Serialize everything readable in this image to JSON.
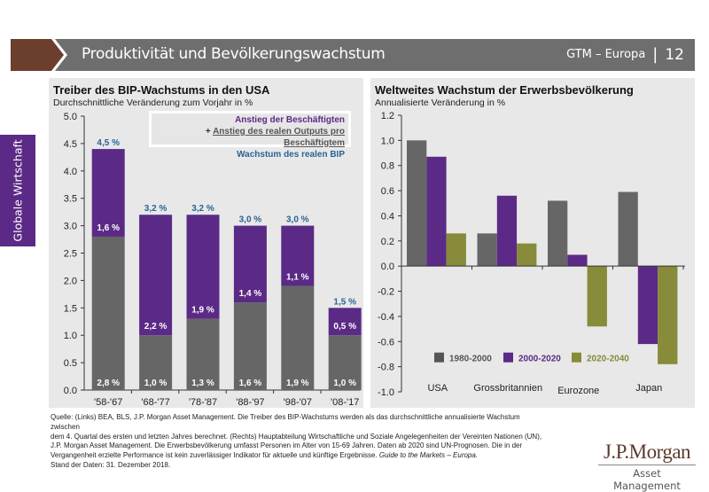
{
  "header": {
    "title": "Produktivität und Bevölkerungswachstum",
    "section": "GTM – Europa",
    "separator": "|",
    "page": "12"
  },
  "side_tab": {
    "label": "Globale Wirtschaft"
  },
  "colors": {
    "gray": "#666666",
    "purple": "#5b2a86",
    "olive": "#878b3a",
    "blue_label": "#2a6496",
    "brown": "#6b3e2e"
  },
  "chart_data": [
    {
      "type": "bar",
      "stacked": true,
      "title": "Treiber des BIP-Wachstums in den USA",
      "subtitle": "Durchschnittliche Veränderung zum Vorjahr in %",
      "categories": [
        "'58-'67",
        "'68-'77",
        "'78-'87",
        "'88-'97",
        "'98-'07",
        "'08-'17"
      ],
      "series": [
        {
          "name": "Anstieg der Beschäftigten",
          "values": [
            2.8,
            1.0,
            1.3,
            1.6,
            1.9,
            1.0
          ],
          "labels": [
            "2,8 %",
            "1,0 %",
            "1,3 %",
            "1,6 %",
            "1,9 %",
            "1,0 %"
          ]
        },
        {
          "name": "Anstieg des realen Outputs pro Beschäftigtem",
          "values": [
            1.6,
            2.2,
            1.9,
            1.4,
            1.1,
            0.5
          ],
          "labels": [
            "1,6 %",
            "2,2 %",
            "1,9 %",
            "1,4 %",
            "1,1 %",
            "0,5 %"
          ]
        }
      ],
      "totals": {
        "name": "Wachstum des realen BIP",
        "values": [
          4.5,
          3.2,
          3.2,
          3.0,
          3.0,
          1.5
        ],
        "labels": [
          "4,5 %",
          "3,2 %",
          "3,2 %",
          "3,0 %",
          "3,0 %",
          "1,5 %"
        ]
      },
      "legend": {
        "line1": "Anstieg der Beschäftigten",
        "plus": "+",
        "line2": "Anstieg des realen Outputs pro Beschäftigtem",
        "line3": "Wachstum des realen BIP",
        "position": "top-right"
      },
      "ylim": [
        0,
        5.0
      ],
      "yticks": [
        "0.0",
        "0.5",
        "1.0",
        "1.5",
        "2.0",
        "2.5",
        "3.0",
        "3.5",
        "4.0",
        "4.5",
        "5.0"
      ],
      "xlabel": "",
      "ylabel": "",
      "grid": false
    },
    {
      "type": "bar",
      "title": "Weltweites Wachstum der Erwerbsbevölkerung",
      "subtitle": "Annualisierte Veränderung in %",
      "categories": [
        "USA",
        "Grossbritannien",
        "Eurozone",
        "Japan"
      ],
      "series": [
        {
          "name": "1980-2000",
          "values": [
            1.0,
            0.26,
            0.52,
            0.59
          ]
        },
        {
          "name": "2000-2020",
          "values": [
            0.87,
            0.56,
            0.09,
            -0.62
          ]
        },
        {
          "name": "2020-2040",
          "values": [
            0.26,
            0.18,
            -0.48,
            -0.78
          ]
        }
      ],
      "legend_position": "bottom-center",
      "ylim": [
        -1.0,
        1.2
      ],
      "yticks": [
        "-1.0",
        "-0.8",
        "-0.6",
        "-0.4",
        "-0.2",
        "0.0",
        "0.2",
        "0.4",
        "0.6",
        "0.8",
        "1.0",
        "1.2"
      ],
      "xlabel": "",
      "ylabel": "",
      "grid": false
    }
  ],
  "footer": {
    "line1": "Quelle: (Links) BEA, BLS, J.P. Morgan Asset Management. Die Treiber des BIP-Wachstums werden als das durchschnittliche annualisierte Wachstum zwischen",
    "line2": "dem 4. Quartal des ersten und letzten Jahres berechnet. (Rechts) Hauptabteilung Wirtschaftliche und Soziale Angelegenheiten der Vereinten Nationen (UN),",
    "line3": "J.P. Morgan Asset Management. Die Erwerbsbevölkerung umfasst Personen im Alter von 15-69 Jahren. Daten ab 2020 sind UN-Prognosen. Die in der",
    "line4_plain": "Vergangenheit erzielte Performance ist kein zuverlässiger Indikator für aktuelle und künftige Ergebnisse. ",
    "line4_italic": "Guide to the Markets – Europa.",
    "line5": "Stand der Daten: 31. Dezember 2018."
  },
  "logo": {
    "name": "J.P.Morgan",
    "sub": "Asset Management"
  }
}
